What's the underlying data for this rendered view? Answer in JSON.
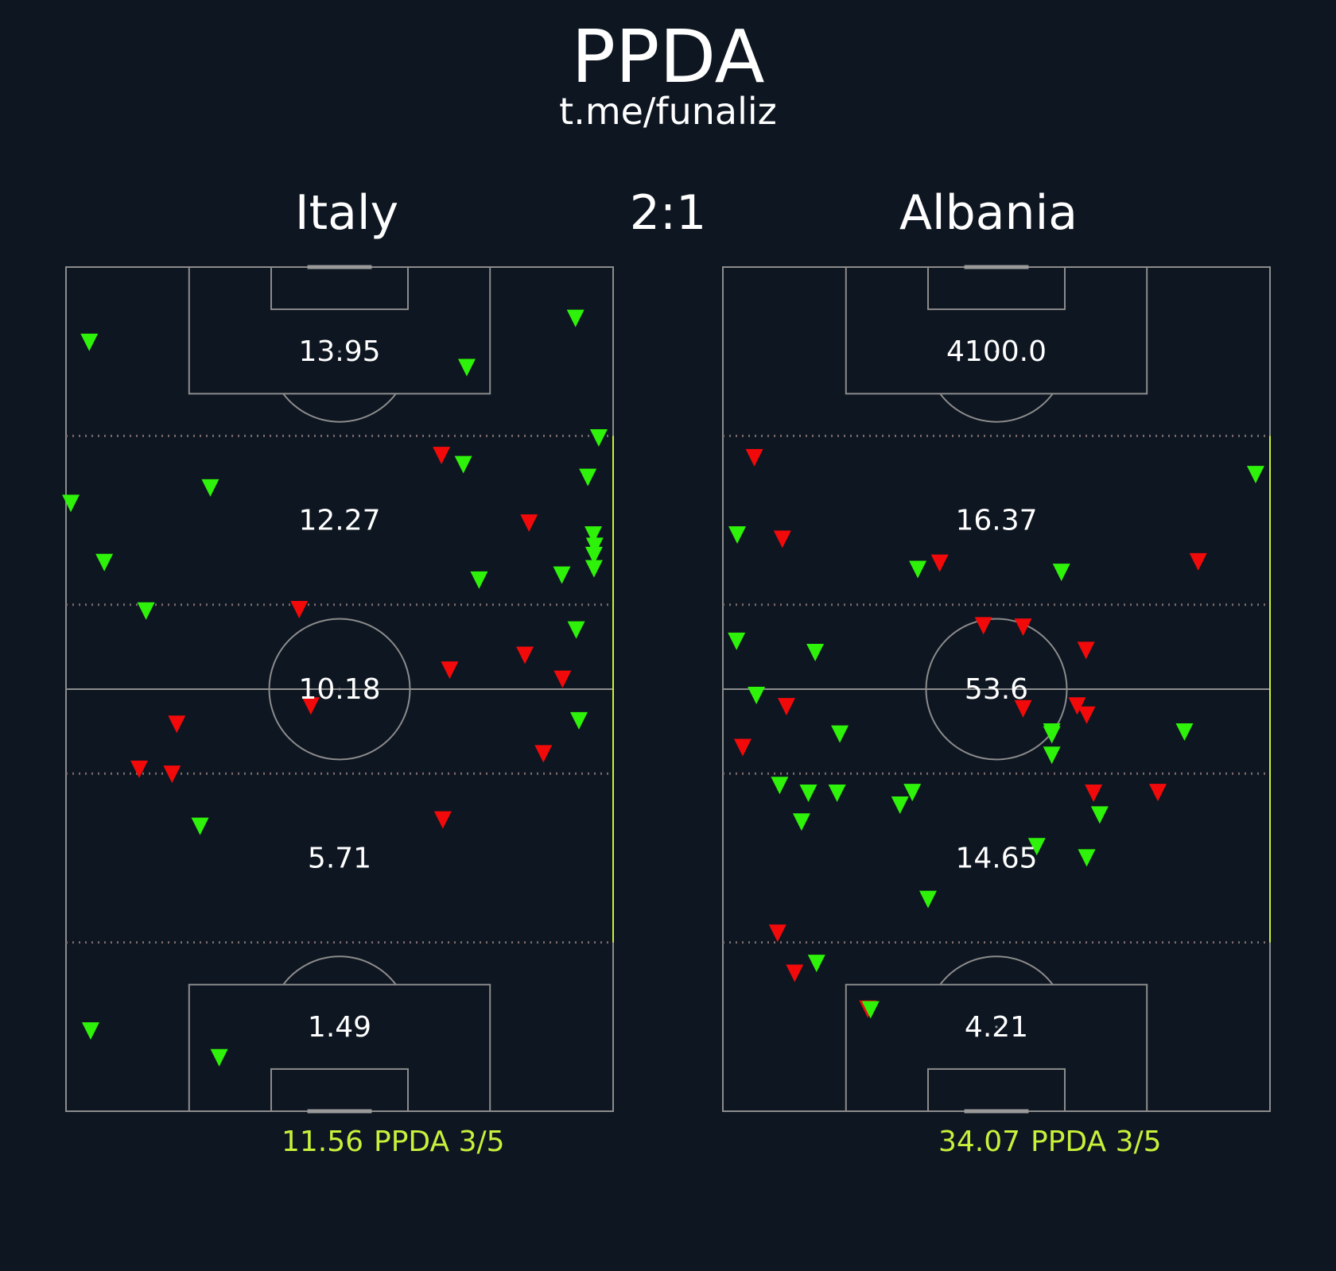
{
  "header": {
    "title": "PPDA",
    "subtitle": "t.me/funaliz"
  },
  "match": {
    "home_team": "Italy",
    "score": "2:1",
    "away_team": "Albania"
  },
  "colors": {
    "background": "#0e1621",
    "pitch_lines": "#8c8c8c",
    "zone_divider": "#7a6a6a",
    "accent": "#c9f03a",
    "green_marker": "#2ef20a",
    "red_marker": "#f20a0a",
    "text": "#ffffff"
  },
  "chart_data": [
    {
      "type": "scatter",
      "team": "Italy",
      "pitch_length": 120,
      "pitch_width": 80,
      "zones": [
        {
          "x_range": [
            0,
            24
          ],
          "ppda": "1.49"
        },
        {
          "x_range": [
            24,
            48
          ],
          "ppda": "5.71"
        },
        {
          "x_range": [
            48,
            72
          ],
          "ppda": "10.18"
        },
        {
          "x_range": [
            72,
            96
          ],
          "ppda": "12.27"
        },
        {
          "x_range": [
            96,
            120
          ],
          "ppda": "13.95"
        }
      ],
      "summary": {
        "value": "11.56",
        "label": "PPDA 3/5"
      },
      "highlight_band": [
        24,
        96
      ],
      "points": [
        {
          "x": 109.3,
          "y": 3.4,
          "c": "g"
        },
        {
          "x": 105.7,
          "y": 58.6,
          "c": "g"
        },
        {
          "x": 112.7,
          "y": 74.5,
          "c": "g"
        },
        {
          "x": 93.2,
          "y": 54.9,
          "c": "r"
        },
        {
          "x": 91.9,
          "y": 58.1,
          "c": "g"
        },
        {
          "x": 88.6,
          "y": 21.1,
          "c": "g"
        },
        {
          "x": 86.4,
          "y": 0.7,
          "c": "g"
        },
        {
          "x": 95.7,
          "y": 77.9,
          "c": "g"
        },
        {
          "x": 90.1,
          "y": 76.3,
          "c": "g"
        },
        {
          "x": 83.6,
          "y": 67.7,
          "c": "r"
        },
        {
          "x": 81.9,
          "y": 77.1,
          "c": "g"
        },
        {
          "x": 80.3,
          "y": 77.3,
          "c": "g"
        },
        {
          "x": 79.0,
          "y": 77.2,
          "c": "g"
        },
        {
          "x": 78.0,
          "y": 5.6,
          "c": "g"
        },
        {
          "x": 75.5,
          "y": 60.4,
          "c": "g"
        },
        {
          "x": 76.2,
          "y": 72.5,
          "c": "g"
        },
        {
          "x": 77.1,
          "y": 77.2,
          "c": "g"
        },
        {
          "x": 71.1,
          "y": 11.7,
          "c": "g"
        },
        {
          "x": 71.3,
          "y": 34.1,
          "c": "r"
        },
        {
          "x": 68.4,
          "y": 74.6,
          "c": "g"
        },
        {
          "x": 64.8,
          "y": 67.1,
          "c": "r"
        },
        {
          "x": 62.7,
          "y": 56.1,
          "c": "r"
        },
        {
          "x": 61.4,
          "y": 72.6,
          "c": "r"
        },
        {
          "x": 57.6,
          "y": 35.8,
          "c": "r"
        },
        {
          "x": 55.0,
          "y": 16.2,
          "c": "r"
        },
        {
          "x": 55.5,
          "y": 75.0,
          "c": "g"
        },
        {
          "x": 50.8,
          "y": 69.8,
          "c": "r"
        },
        {
          "x": 48.6,
          "y": 10.7,
          "c": "r"
        },
        {
          "x": 47.9,
          "y": 15.5,
          "c": "r"
        },
        {
          "x": 40.5,
          "y": 19.6,
          "c": "g"
        },
        {
          "x": 41.4,
          "y": 55.1,
          "c": "r"
        },
        {
          "x": 11.4,
          "y": 3.6,
          "c": "g"
        },
        {
          "x": 7.6,
          "y": 22.4,
          "c": "g"
        }
      ]
    },
    {
      "type": "scatter",
      "team": "Albania",
      "pitch_length": 120,
      "pitch_width": 80,
      "zones": [
        {
          "x_range": [
            0,
            24
          ],
          "ppda": "4.21"
        },
        {
          "x_range": [
            24,
            48
          ],
          "ppda": "14.65"
        },
        {
          "x_range": [
            48,
            72
          ],
          "ppda": "53.6"
        },
        {
          "x_range": [
            72,
            96
          ],
          "ppda": "16.37"
        },
        {
          "x_range": [
            96,
            120
          ],
          "ppda": "4100.0"
        }
      ],
      "summary": {
        "value": "34.07",
        "label": "PPDA 3/5"
      },
      "highlight_band": [
        24,
        96
      ],
      "points": [
        {
          "x": 92.9,
          "y": 4.6,
          "c": "r"
        },
        {
          "x": 90.5,
          "y": 77.9,
          "c": "g"
        },
        {
          "x": 81.9,
          "y": 2.1,
          "c": "g"
        },
        {
          "x": 81.3,
          "y": 8.7,
          "c": "r"
        },
        {
          "x": 77.9,
          "y": 31.7,
          "c": "r"
        },
        {
          "x": 77.0,
          "y": 28.5,
          "c": "g"
        },
        {
          "x": 76.6,
          "y": 49.5,
          "c": "g"
        },
        {
          "x": 78.1,
          "y": 69.5,
          "c": "r"
        },
        {
          "x": 66.8,
          "y": 2.0,
          "c": "g"
        },
        {
          "x": 65.2,
          "y": 13.5,
          "c": "g"
        },
        {
          "x": 69.0,
          "y": 38.1,
          "c": "r"
        },
        {
          "x": 68.8,
          "y": 43.9,
          "c": "r"
        },
        {
          "x": 65.5,
          "y": 53.1,
          "c": "r"
        },
        {
          "x": 59.1,
          "y": 4.9,
          "c": "g"
        },
        {
          "x": 57.5,
          "y": 9.3,
          "c": "r"
        },
        {
          "x": 53.6,
          "y": 17.1,
          "c": "g"
        },
        {
          "x": 57.2,
          "y": 43.9,
          "c": "r"
        },
        {
          "x": 57.6,
          "y": 51.8,
          "c": "r"
        },
        {
          "x": 56.3,
          "y": 53.2,
          "c": "r"
        },
        {
          "x": 53.5,
          "y": 48.1,
          "c": "g"
        },
        {
          "x": 53.9,
          "y": 48.1,
          "c": "g"
        },
        {
          "x": 51.7,
          "y": 2.9,
          "c": "r"
        },
        {
          "x": 50.6,
          "y": 48.1,
          "c": "g"
        },
        {
          "x": 53.9,
          "y": 67.5,
          "c": "g"
        },
        {
          "x": 46.3,
          "y": 8.3,
          "c": "g"
        },
        {
          "x": 45.2,
          "y": 12.5,
          "c": "g"
        },
        {
          "x": 45.2,
          "y": 16.7,
          "c": "g"
        },
        {
          "x": 45.3,
          "y": 27.7,
          "c": "g"
        },
        {
          "x": 43.5,
          "y": 25.9,
          "c": "g"
        },
        {
          "x": 45.2,
          "y": 54.2,
          "c": "r"
        },
        {
          "x": 42.1,
          "y": 55.1,
          "c": "g"
        },
        {
          "x": 45.3,
          "y": 63.6,
          "c": "r"
        },
        {
          "x": 41.1,
          "y": 11.5,
          "c": "g"
        },
        {
          "x": 37.6,
          "y": 45.9,
          "c": "g"
        },
        {
          "x": 36.0,
          "y": 53.2,
          "c": "g"
        },
        {
          "x": 30.1,
          "y": 30.0,
          "c": "g"
        },
        {
          "x": 25.3,
          "y": 8.0,
          "c": "r"
        },
        {
          "x": 21.0,
          "y": 13.7,
          "c": "g"
        },
        {
          "x": 19.6,
          "y": 10.5,
          "c": "r"
        },
        {
          "x": 14.5,
          "y": 21.2,
          "c": "r"
        },
        {
          "x": 14.4,
          "y": 21.6,
          "c": "g"
        }
      ]
    }
  ]
}
